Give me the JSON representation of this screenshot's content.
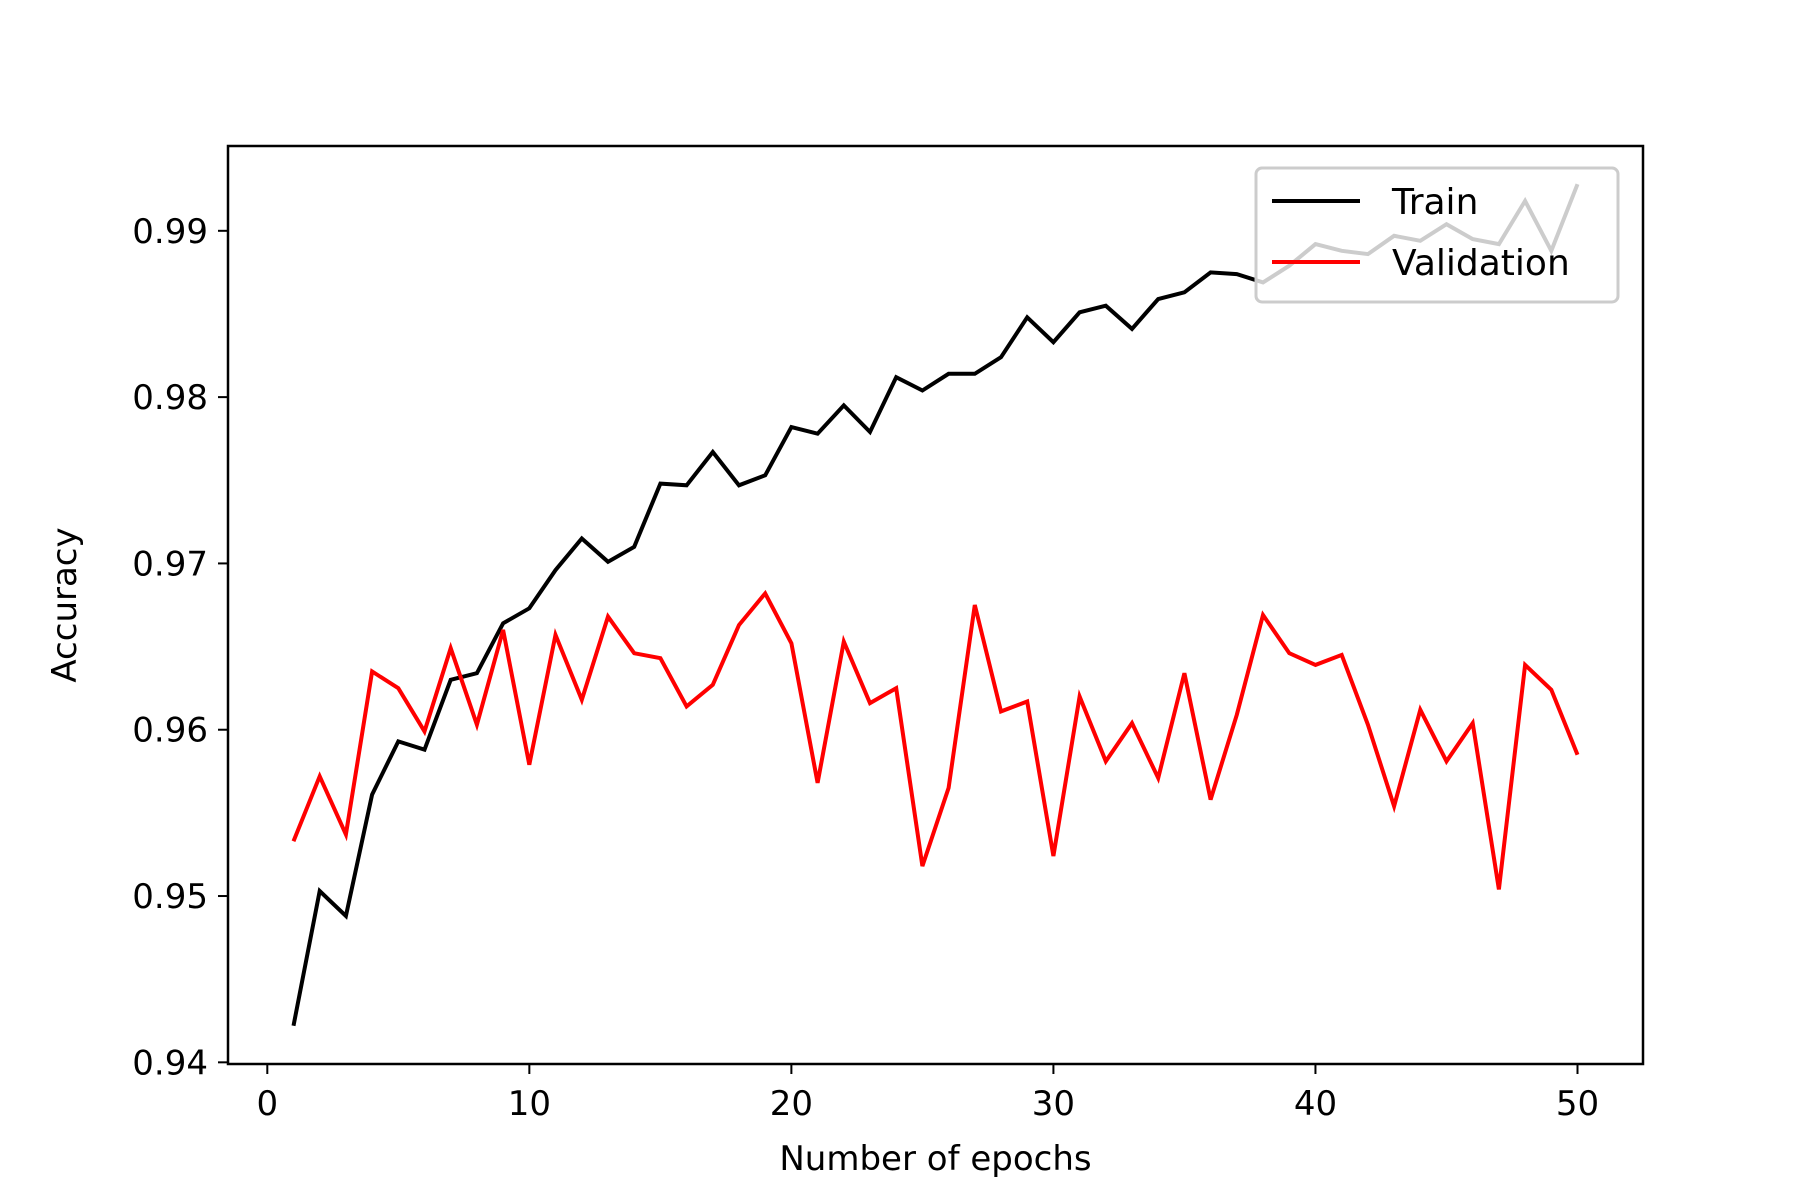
{
  "chart_data": {
    "type": "line",
    "title": "",
    "xlabel": "Number of epochs",
    "ylabel": "Accuracy",
    "xlim": [
      -1.5,
      52.5
    ],
    "ylim": [
      0.9399,
      0.9951
    ],
    "xticks": [
      0,
      10,
      20,
      30,
      40,
      50
    ],
    "yticks": [
      0.94,
      0.95,
      0.96,
      0.97,
      0.98,
      0.99
    ],
    "xtick_labels": [
      "0",
      "10",
      "20",
      "30",
      "40",
      "50"
    ],
    "ytick_labels": [
      "0.94",
      "0.95",
      "0.96",
      "0.97",
      "0.98",
      "0.99"
    ],
    "grid": false,
    "legend_position": "upper right",
    "x": [
      1,
      2,
      3,
      4,
      5,
      6,
      7,
      8,
      9,
      10,
      11,
      12,
      13,
      14,
      15,
      16,
      17,
      18,
      19,
      20,
      21,
      22,
      23,
      24,
      25,
      26,
      27,
      28,
      29,
      30,
      31,
      32,
      33,
      34,
      35,
      36,
      37,
      38,
      39,
      40,
      41,
      42,
      43,
      44,
      45,
      46,
      47,
      48,
      49,
      50
    ],
    "series": [
      {
        "name": "Train",
        "color": "#000000",
        "values": [
          0.9422,
          0.9503,
          0.9488,
          0.9561,
          0.9593,
          0.9588,
          0.963,
          0.9634,
          0.9664,
          0.9673,
          0.9696,
          0.9715,
          0.9701,
          0.971,
          0.9748,
          0.9747,
          0.9767,
          0.9747,
          0.9753,
          0.9782,
          0.9778,
          0.9795,
          0.9779,
          0.9812,
          0.9804,
          0.9814,
          0.9814,
          0.9824,
          0.9848,
          0.9833,
          0.9851,
          0.9855,
          0.9841,
          0.9859,
          0.9863,
          0.9875,
          0.9874,
          0.9869,
          0.9879,
          0.9892,
          0.9888,
          0.9886,
          0.9897,
          0.9894,
          0.9904,
          0.9895,
          0.9892,
          0.9918,
          0.9888,
          0.9928
        ]
      },
      {
        "name": "Validation",
        "color": "#ff0000",
        "values": [
          0.9533,
          0.9572,
          0.9537,
          0.9635,
          0.9625,
          0.9599,
          0.9649,
          0.9603,
          0.966,
          0.9579,
          0.9657,
          0.9618,
          0.9668,
          0.9646,
          0.9643,
          0.9614,
          0.9627,
          0.9663,
          0.9682,
          0.9652,
          0.9568,
          0.9653,
          0.9616,
          0.9625,
          0.9518,
          0.9565,
          0.9675,
          0.9611,
          0.9617,
          0.9524,
          0.962,
          0.9581,
          0.9604,
          0.9571,
          0.9634,
          0.9558,
          0.9609,
          0.9669,
          0.9646,
          0.9639,
          0.9645,
          0.9603,
          0.9554,
          0.9612,
          0.9581,
          0.9604,
          0.9504,
          0.9639,
          0.9624,
          0.9585
        ]
      }
    ]
  }
}
